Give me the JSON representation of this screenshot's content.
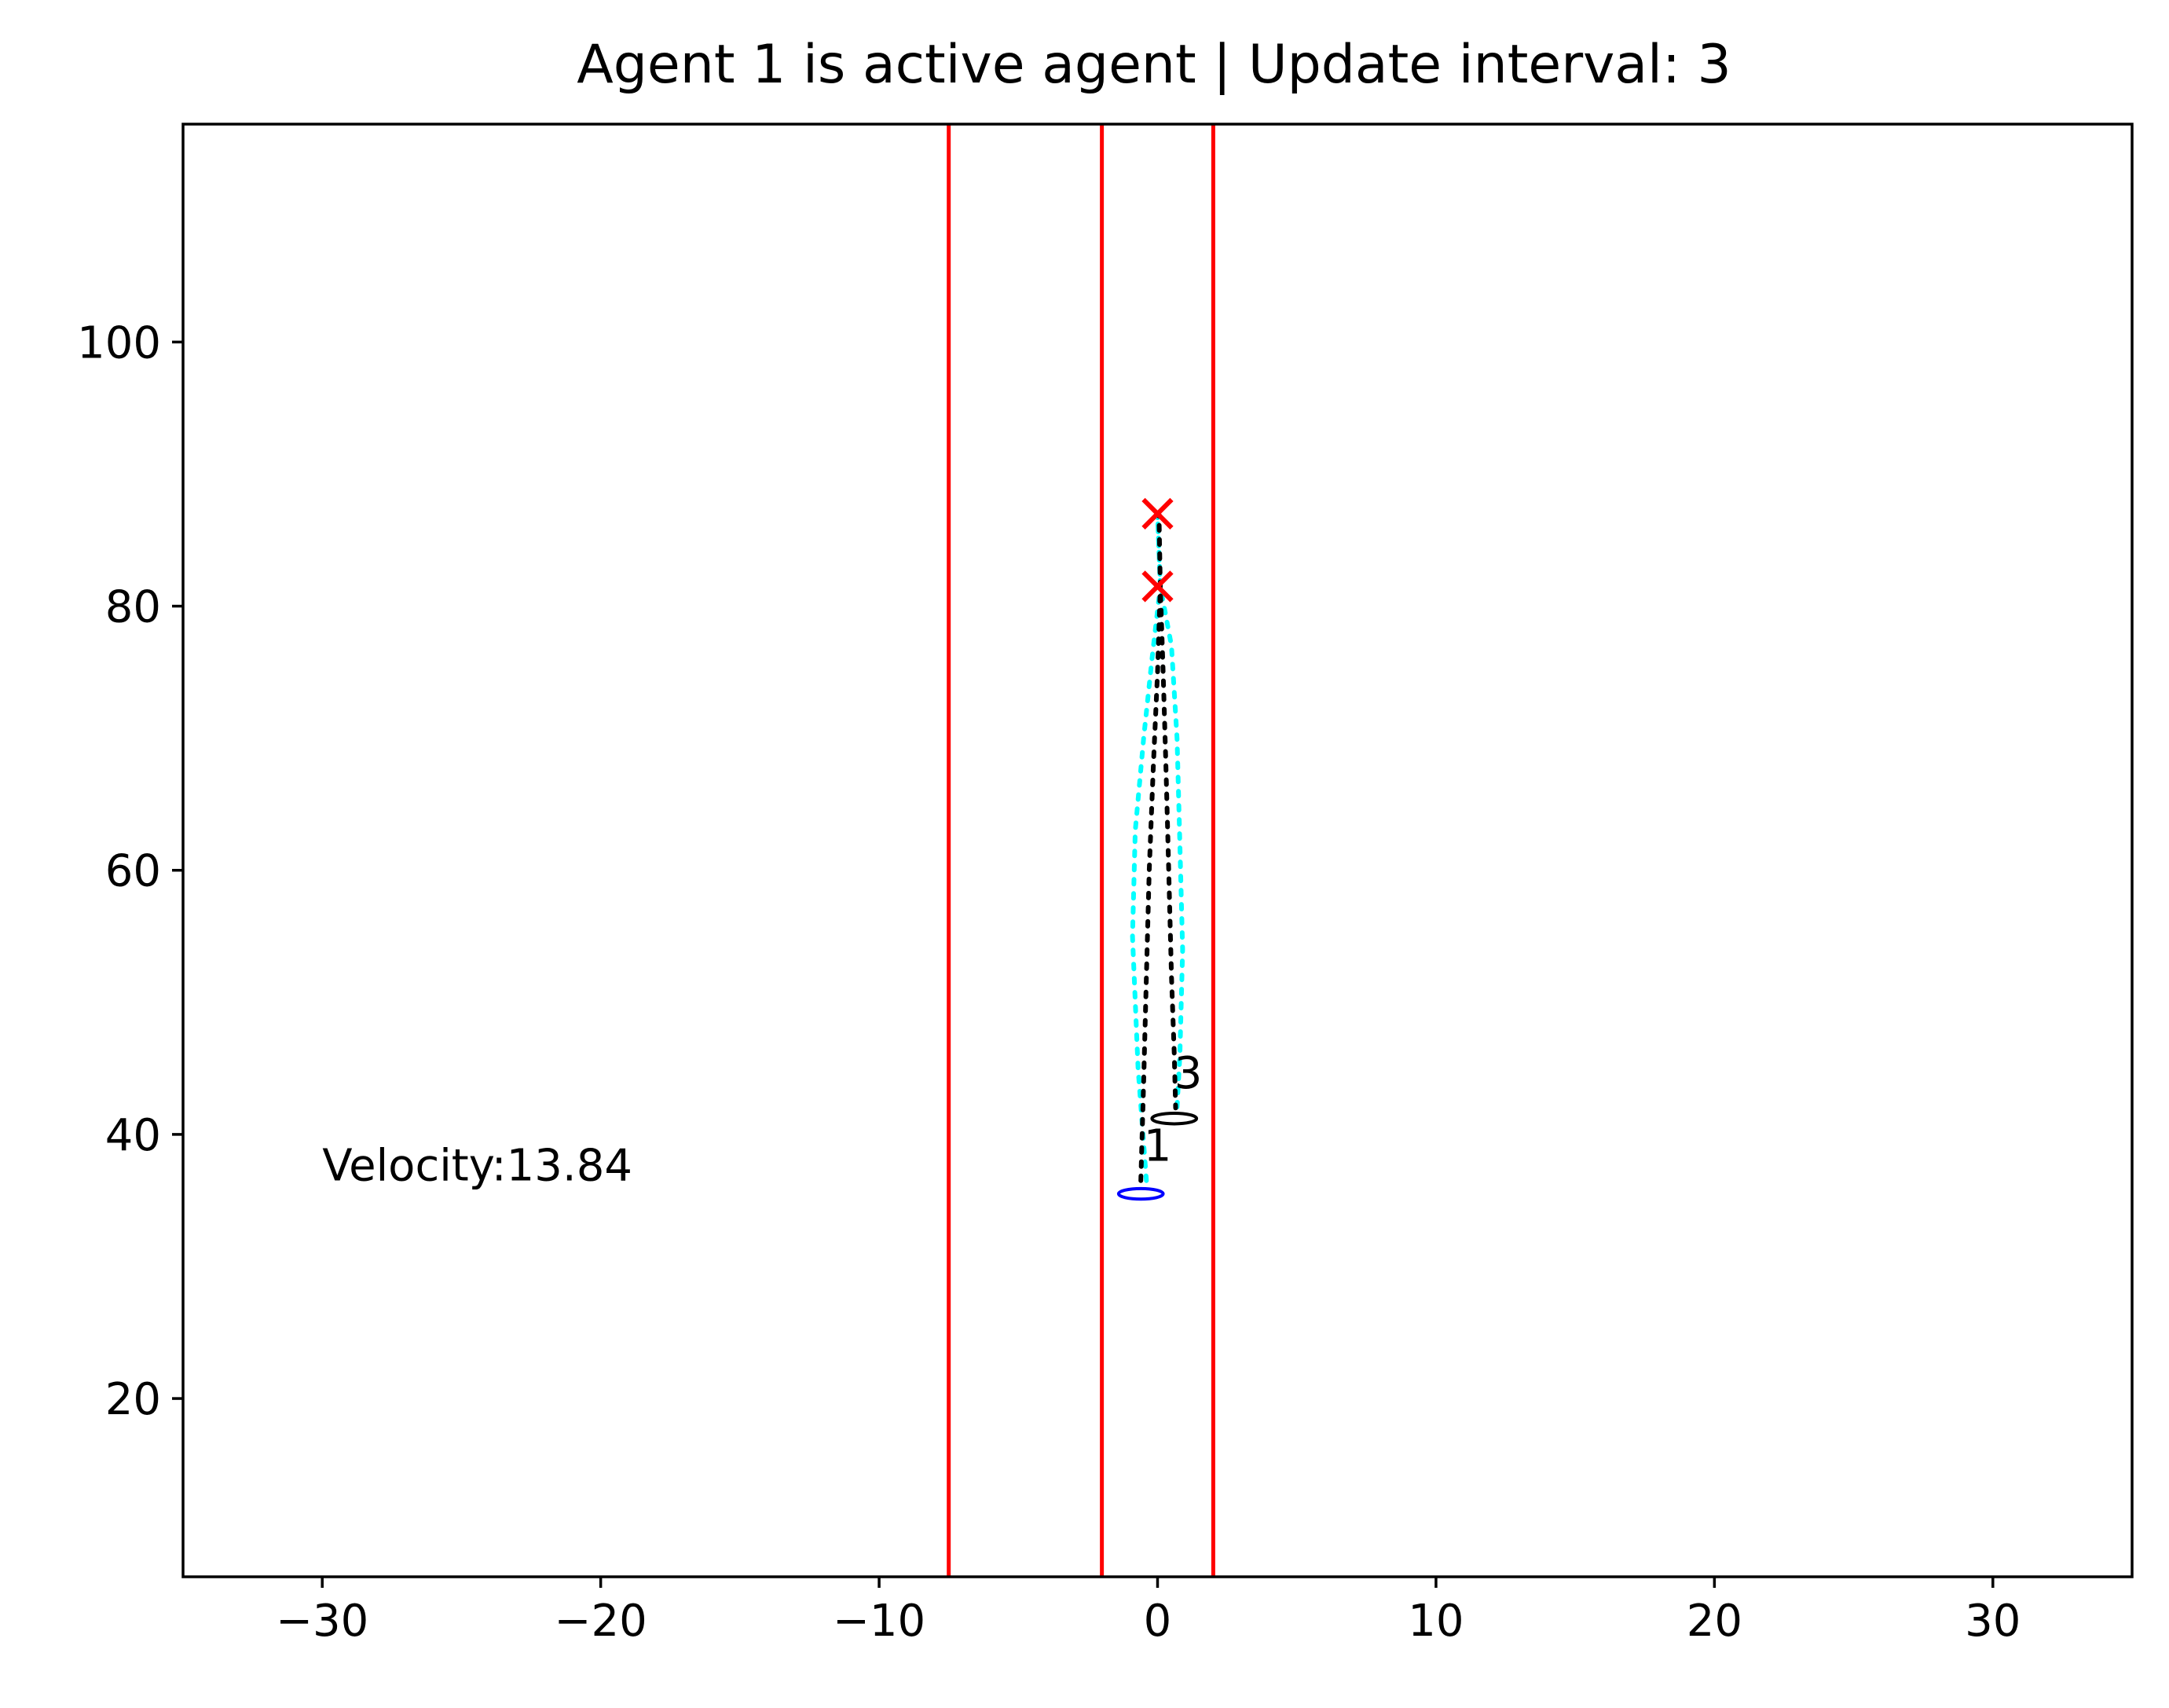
{
  "chart_data": {
    "type": "scatter",
    "title": "Agent 1 is active agent | Update interval: 3",
    "xlabel": "",
    "ylabel": "",
    "xlim": [
      -35,
      35
    ],
    "ylim": [
      6.5,
      116.5
    ],
    "xticks": [
      -30,
      -20,
      -10,
      0,
      10,
      20,
      30
    ],
    "xtick_labels": [
      "−30",
      "−20",
      "−10",
      "0",
      "10",
      "20",
      "30"
    ],
    "yticks": [
      20,
      40,
      60,
      80,
      100
    ],
    "ytick_labels": [
      "20",
      "40",
      "60",
      "80",
      "100"
    ],
    "grid": false,
    "lane_lines": {
      "color": "#ff0000",
      "x": [
        -7.5,
        -2.0,
        2.0
      ]
    },
    "annotations": [
      {
        "text": "Velocity:13.84",
        "x": -30,
        "y": 36.5
      },
      {
        "text": "1",
        "x": -0.5,
        "y": 38
      },
      {
        "text": "3",
        "x": 0.6,
        "y": 43.5
      }
    ],
    "agents": [
      {
        "id": "1",
        "color": "#0000ff",
        "x": -0.6,
        "y": 35.5,
        "ellipse_w": 1.6,
        "ellipse_h": 1.6
      },
      {
        "id": "3",
        "color": "#000000",
        "x": 0.6,
        "y": 41.2,
        "ellipse_w": 1.6,
        "ellipse_h": 1.6
      }
    ],
    "goals": {
      "color": "#ff0000",
      "marker": "x",
      "points": [
        {
          "x": 0.0,
          "y": 87.0
        },
        {
          "x": 0.0,
          "y": 81.5
        }
      ]
    },
    "series": [
      {
        "color": "#00ffff",
        "style": "dotted",
        "points": [
          [
            -0.4,
            36.5
          ],
          [
            -0.7,
            45
          ],
          [
            -0.9,
            55
          ],
          [
            -0.8,
            63
          ],
          [
            -0.5,
            70
          ],
          [
            -0.2,
            76
          ],
          [
            0.1,
            81.5
          ],
          [
            0.0,
            87.0
          ],
          [
            0.1,
            81.5
          ],
          [
            0.5,
            77
          ],
          [
            0.7,
            70
          ],
          [
            0.8,
            62
          ],
          [
            0.9,
            54
          ],
          [
            0.8,
            46
          ],
          [
            0.7,
            42
          ]
        ]
      },
      {
        "color": "#000000",
        "style": "dotted",
        "points": [
          [
            -0.6,
            36.5
          ],
          [
            -0.5,
            44
          ],
          [
            -0.4,
            52
          ],
          [
            -0.3,
            60
          ],
          [
            -0.15,
            68
          ],
          [
            0.0,
            75
          ],
          [
            0.1,
            81.5
          ],
          [
            0.05,
            87.0
          ],
          [
            0.1,
            81.5
          ],
          [
            0.2,
            75
          ],
          [
            0.3,
            68
          ],
          [
            0.4,
            60
          ],
          [
            0.5,
            52
          ],
          [
            0.6,
            46
          ],
          [
            0.65,
            42
          ]
        ]
      }
    ]
  }
}
